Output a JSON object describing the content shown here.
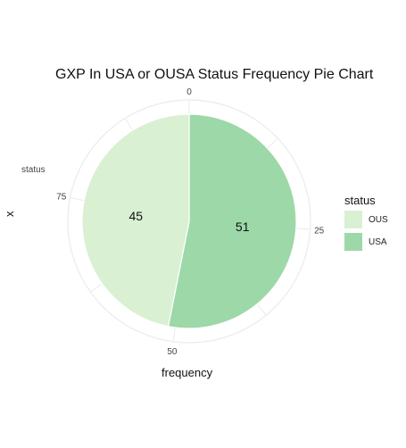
{
  "chart_data": {
    "type": "pie",
    "title": "GXP In USA or OUSA Status Frequency Pie Chart",
    "xlabel": "frequency",
    "ylabel": "x",
    "y_tick_label": "status",
    "angular_ticks": [
      "0",
      "25",
      "50",
      "75"
    ],
    "angular_range": [
      0,
      96
    ],
    "slices": [
      {
        "label": "OUS",
        "value": 45,
        "color": "#d9f0d3"
      },
      {
        "label": "USA",
        "value": 51,
        "color": "#9dd8a8"
      }
    ],
    "legend": {
      "title": "status",
      "position": "right",
      "entries": [
        "OUS",
        "USA"
      ]
    },
    "grid": true
  }
}
